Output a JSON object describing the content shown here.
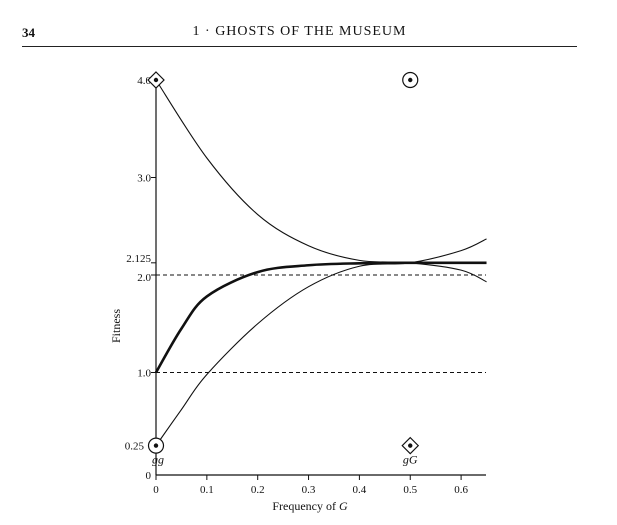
{
  "header": {
    "page_number": "34",
    "chapter_title": "1 · GHOSTS OF THE MUSEUM"
  },
  "colors": {
    "ink": "#111111",
    "paper": "#ffffff"
  },
  "chart_data": {
    "type": "line",
    "title": "",
    "xlabel": "Frequency of G",
    "ylabel": "Fitness",
    "xlim": [
      0,
      0.65
    ],
    "ylim": [
      0,
      4.25
    ],
    "xticks": [
      {
        "value": 0,
        "label": "0"
      },
      {
        "value": 0.1,
        "label": "0.1"
      },
      {
        "value": 0.2,
        "label": "0.2"
      },
      {
        "value": 0.3,
        "label": "0.3"
      },
      {
        "value": 0.4,
        "label": "0.4"
      },
      {
        "value": 0.5,
        "label": "0.5"
      },
      {
        "value": 0.6,
        "label": "0.6"
      }
    ],
    "yticks": [
      {
        "value": 0,
        "label": "0"
      },
      {
        "value": 0.25,
        "label": "0.25"
      },
      {
        "value": 1.0,
        "label": "1.0"
      },
      {
        "value": 2.0,
        "label": "2.0"
      },
      {
        "value": 2.125,
        "label": "2.125"
      },
      {
        "value": 3.0,
        "label": "3.0"
      },
      {
        "value": 4.0,
        "label": "4.0"
      }
    ],
    "reference_lines": [
      {
        "y": 2.0,
        "style": "dashed"
      },
      {
        "y": 1.0,
        "style": "dashed"
      }
    ],
    "series": [
      {
        "style": "thin",
        "x": [
          0,
          0.1,
          0.2,
          0.3,
          0.4,
          0.5,
          0.6,
          0.65
        ],
        "y": [
          4.0,
          3.2,
          2.62,
          2.3,
          2.15,
          2.125,
          2.05,
          1.93
        ]
      },
      {
        "style": "thick",
        "x": [
          0,
          0.05,
          0.1,
          0.2,
          0.3,
          0.4,
          0.5,
          0.6,
          0.65
        ],
        "y": [
          1.0,
          1.45,
          1.78,
          2.03,
          2.1,
          2.12,
          2.125,
          2.125,
          2.125
        ]
      },
      {
        "style": "thin",
        "x": [
          0,
          0.05,
          0.1,
          0.2,
          0.3,
          0.4,
          0.5,
          0.6,
          0.65
        ],
        "y": [
          0.25,
          0.62,
          0.98,
          1.5,
          1.88,
          2.09,
          2.125,
          2.25,
          2.37
        ]
      }
    ],
    "markers": [
      {
        "shape": "diamond-dot",
        "x": 0,
        "y": 4.0
      },
      {
        "shape": "circle-dot",
        "x": 0.5,
        "y": 4.0
      },
      {
        "shape": "circle-dot",
        "x": 0,
        "y": 0.25
      },
      {
        "shape": "diamond-dot",
        "x": 0.5,
        "y": 0.25
      }
    ],
    "annotations": [
      {
        "text": "gg",
        "x": 0,
        "y": 0.25
      },
      {
        "text": "gG",
        "x": 0.5,
        "y": 0.25
      }
    ]
  }
}
